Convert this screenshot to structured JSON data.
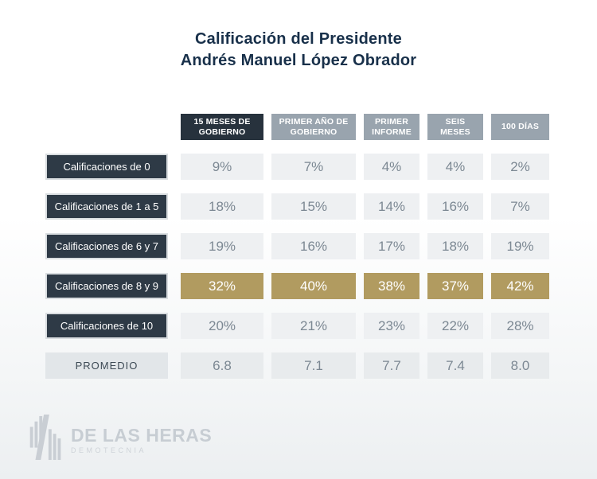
{
  "title": {
    "line1": "Calificación del Presidente",
    "line2": "Andrés Manuel López Obrador"
  },
  "table": {
    "column_headers": [
      {
        "label": "15 MESES DE GOBIERNO",
        "highlight": true
      },
      {
        "label": "PRIMER AÑO DE GOBIERNO",
        "highlight": false
      },
      {
        "label": "PRIMER INFORME",
        "highlight": false
      },
      {
        "label": "SEIS MESES",
        "highlight": false
      },
      {
        "label": "100 DÍAS",
        "highlight": false
      }
    ],
    "rows": [
      {
        "label": "Calificaciones de 0",
        "values": [
          "9%",
          "7%",
          "4%",
          "4%",
          "2%"
        ],
        "highlight": false,
        "summary": false
      },
      {
        "label": "Calificaciones de 1 a 5",
        "values": [
          "18%",
          "15%",
          "14%",
          "16%",
          "7%"
        ],
        "highlight": false,
        "summary": false
      },
      {
        "label": "Calificaciones de 6 y 7",
        "values": [
          "19%",
          "16%",
          "17%",
          "18%",
          "19%"
        ],
        "highlight": false,
        "summary": false
      },
      {
        "label": "Calificaciones de 8 y 9",
        "values": [
          "32%",
          "40%",
          "38%",
          "37%",
          "42%"
        ],
        "highlight": true,
        "summary": false
      },
      {
        "label": "Calificaciones de 10",
        "values": [
          "20%",
          "21%",
          "23%",
          "22%",
          "28%"
        ],
        "highlight": false,
        "summary": false
      },
      {
        "label": "PROMEDIO",
        "values": [
          "6.8",
          "7.1",
          "7.7",
          "7.4",
          "8.0"
        ],
        "highlight": false,
        "summary": true
      }
    ]
  },
  "chart_data": {
    "type": "table",
    "title": "Calificación del Presidente Andrés Manuel López Obrador",
    "columns": [
      "15 meses de gobierno",
      "Primer año de gobierno",
      "Primer informe",
      "Seis meses",
      "100 días"
    ],
    "series": [
      {
        "name": "Calificaciones de 0",
        "values": [
          9,
          7,
          4,
          4,
          2
        ],
        "unit": "%"
      },
      {
        "name": "Calificaciones de 1 a 5",
        "values": [
          18,
          15,
          14,
          16,
          7
        ],
        "unit": "%"
      },
      {
        "name": "Calificaciones de 6 y 7",
        "values": [
          19,
          16,
          17,
          18,
          19
        ],
        "unit": "%"
      },
      {
        "name": "Calificaciones de 8 y 9",
        "values": [
          32,
          40,
          38,
          37,
          42
        ],
        "unit": "%",
        "highlighted": true
      },
      {
        "name": "Calificaciones de 10",
        "values": [
          20,
          21,
          23,
          22,
          28
        ],
        "unit": "%"
      },
      {
        "name": "Promedio",
        "values": [
          6.8,
          7.1,
          7.7,
          7.4,
          8.0
        ],
        "unit": "score"
      }
    ],
    "layout": {
      "highlight_color_meaning": "modal rating band (8 y 9)"
    }
  },
  "logo": {
    "name": "DE LAS HERAS",
    "subtitle": "DEMOTECNIA"
  },
  "colors": {
    "title_navy": "#18304a",
    "header_dark": "#27323d",
    "header_gray": "#99a4ae",
    "row_label_dark": "#2e3a46",
    "cell_bg": "#eef0f2",
    "cell_text": "#7c8893",
    "accent_gold": "#b19b60",
    "summary_label_bg": "#e2e6e9",
    "summary_cell_bg": "#e8ebed",
    "logo_gray": "#c7cdd3"
  }
}
